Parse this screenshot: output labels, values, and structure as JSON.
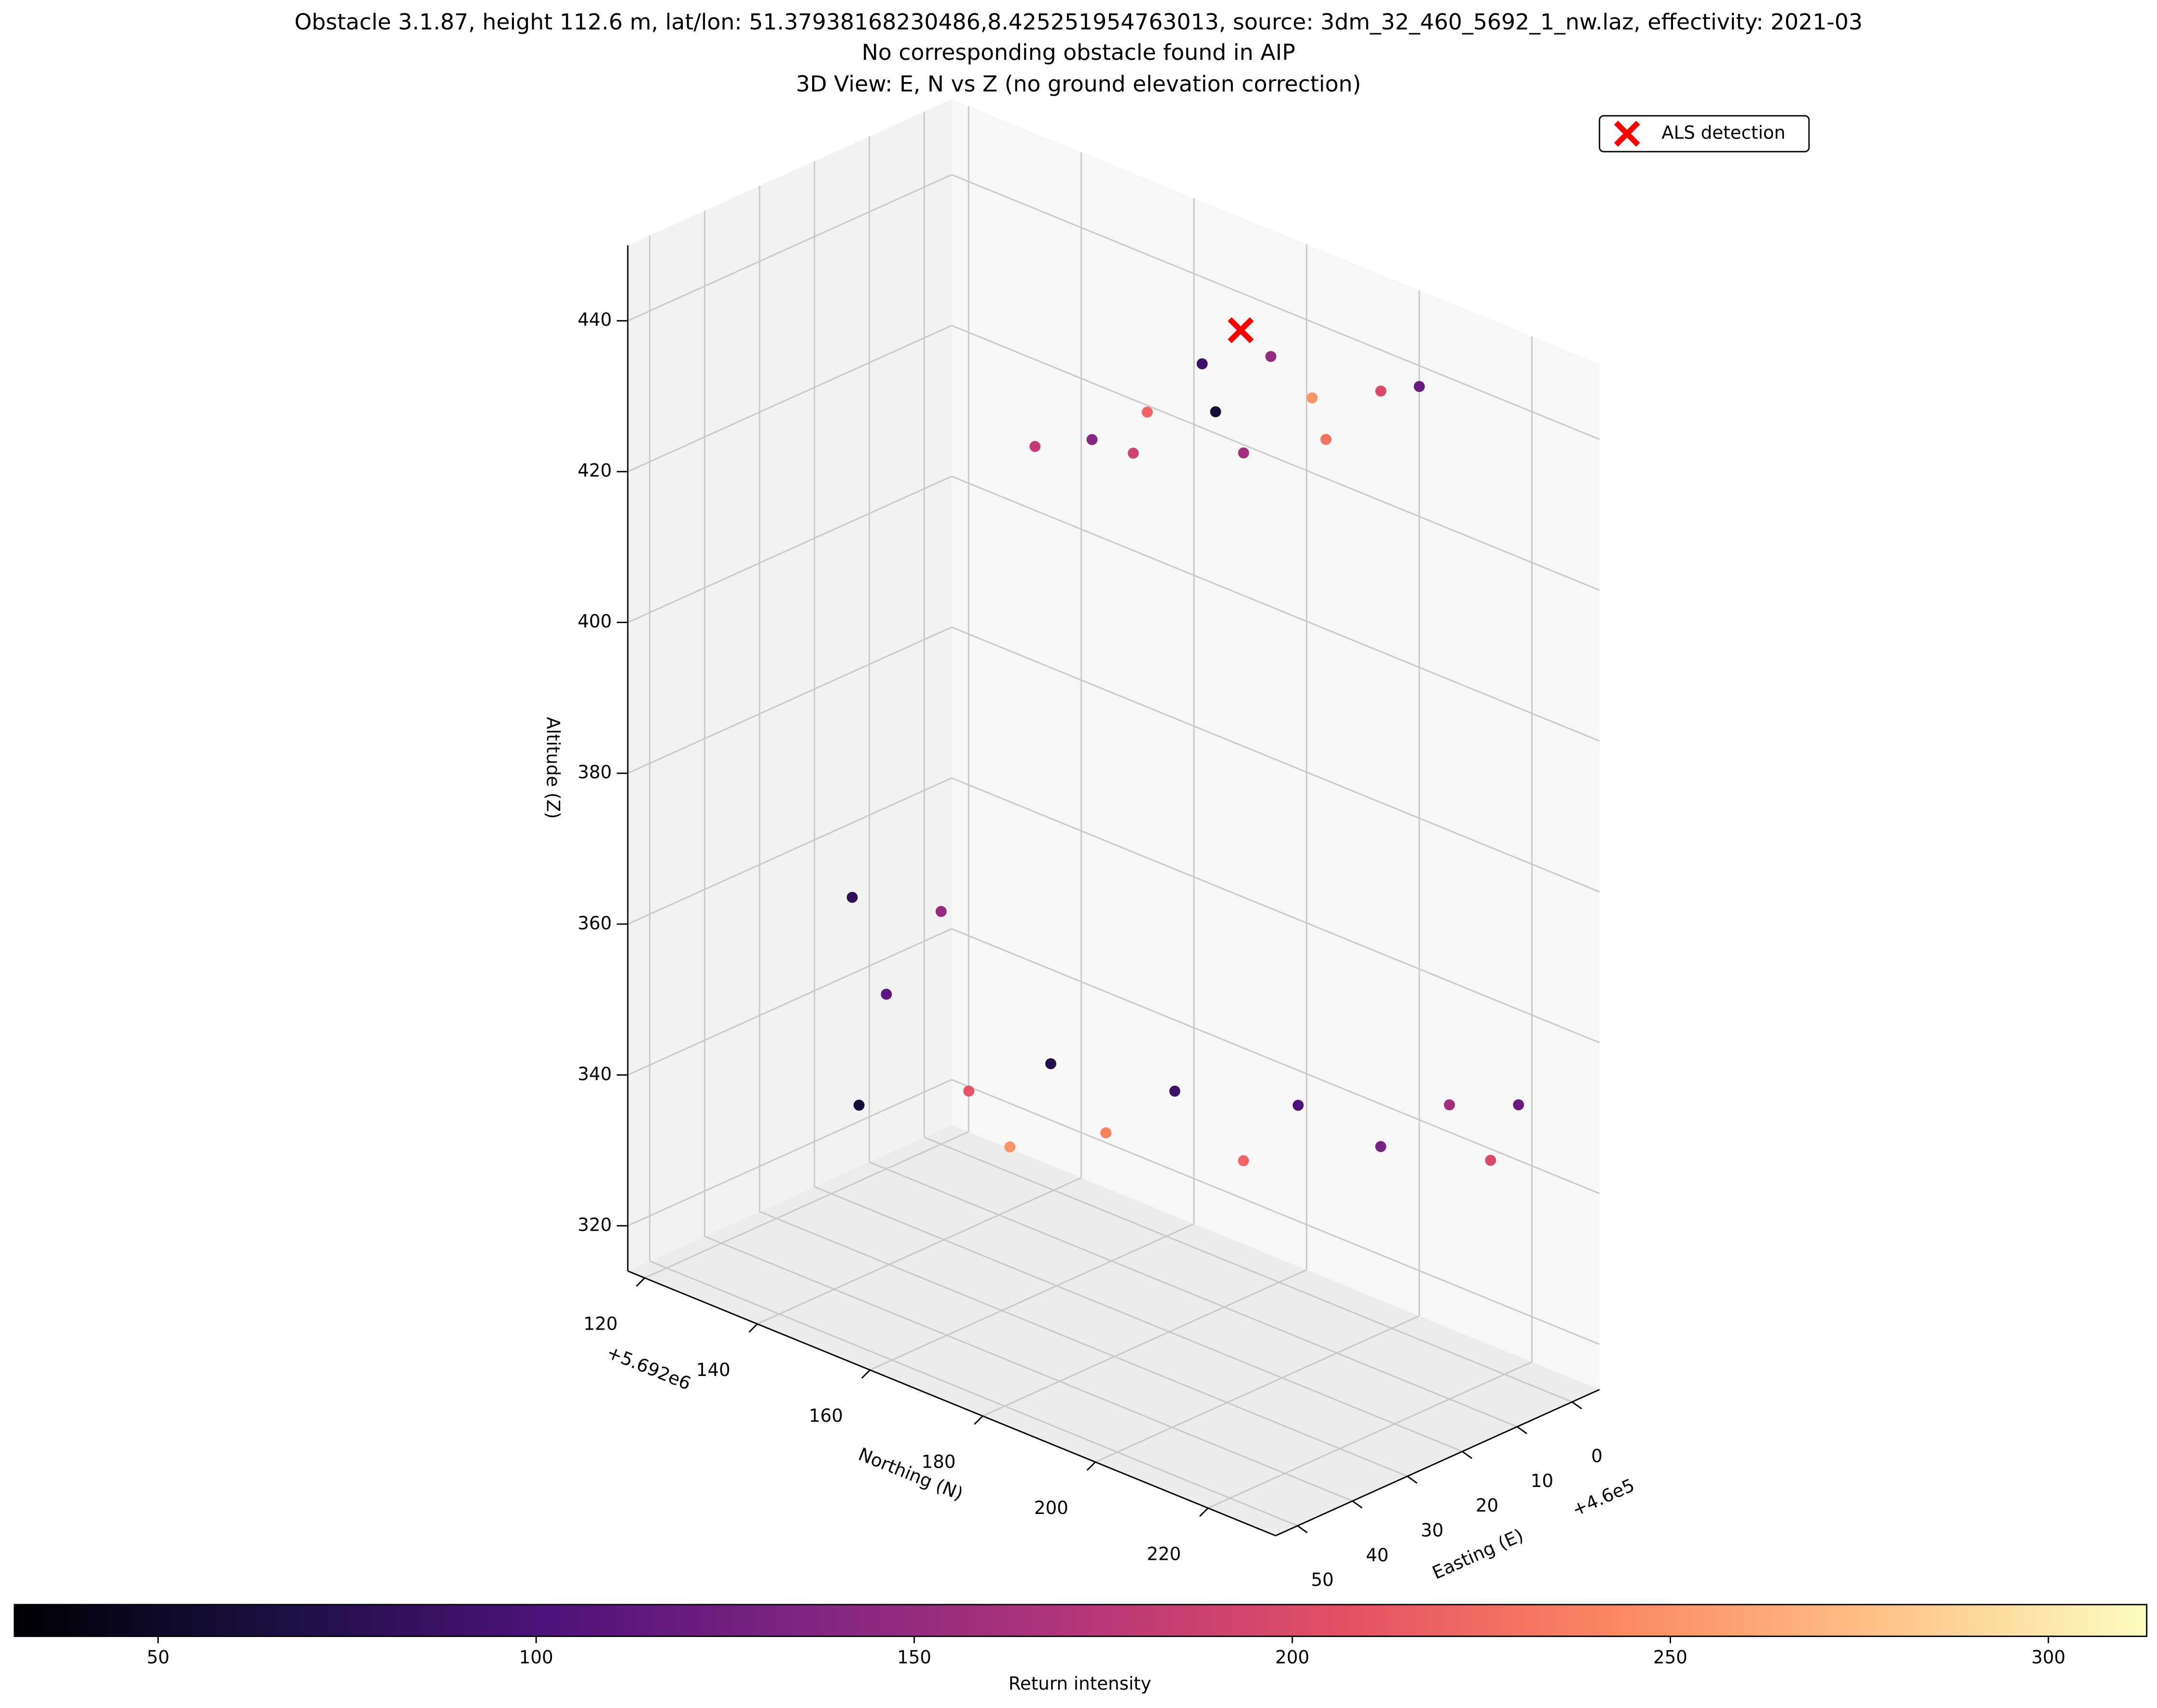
{
  "chart_data": {
    "type": "scatter3d",
    "title": "Obstacle 3.1.87, height 112.6 m, lat/lon: 51.37938168230486,8.425251954763013, source: 3dm_32_460_5692_1_nw.laz, effectivity: 2021-03",
    "subtitle": "No corresponding obstacle found in AIP",
    "view_title": "3D View: E, N vs Z (no ground elevation correction)",
    "xlabel": "Easting (E)",
    "ylabel": "Northing (N)",
    "zlabel": "Altitude (Z)",
    "x_offset_label": "+4.6e5",
    "y_offset_label": "+5.692e6",
    "xlim": [
      -5,
      54
    ],
    "ylim": [
      117,
      232
    ],
    "zlim": [
      314,
      450
    ],
    "xticks": [
      0,
      10,
      20,
      30,
      40,
      50
    ],
    "yticks": [
      120,
      140,
      160,
      180,
      200,
      220
    ],
    "zticks": [
      320,
      340,
      360,
      380,
      400,
      420,
      440
    ],
    "grid": true,
    "colormap": "magma",
    "x": [
      26.2,
      23.0,
      15.6,
      5.4,
      19.1,
      6.3,
      2.1,
      -0.6,
      12.3,
      12.8,
      23.9,
      1.1,
      32.1,
      30.5,
      32.4,
      19.4,
      27.9,
      18.2,
      13.7,
      6.9,
      2.9,
      -0.8,
      -2.4,
      -2.8,
      -4.0,
      -2.6,
      23.4
    ],
    "y": [
      162.2,
      169.2,
      171.8,
      171.6,
      192.3,
      192.0,
      200.1,
      204.3,
      200.3,
      181.2,
      177.4,
      179.6,
      135.5,
      140.0,
      137.0,
      138.9,
      152.1,
      157.2,
      162.6,
      168.2,
      176.5,
      182.6,
      195.7,
      207.5,
      218.6,
      215.0,
      155.0
    ],
    "z": [
      428,
      430,
      432,
      435,
      434,
      437,
      439,
      440,
      436,
      434,
      431,
      437,
      362,
      350,
      335,
      357,
      340,
      342,
      333,
      338,
      330,
      338,
      336,
      345,
      348,
      340,
      332
    ],
    "intensity": [
      180,
      140,
      220,
      90,
      160,
      250,
      200,
      120,
      230,
      60,
      190,
      150,
      80,
      110,
      60,
      150,
      210,
      70,
      240,
      90,
      220,
      100,
      130,
      160,
      120,
      200,
      250
    ],
    "detection": {
      "name": "ALS detection",
      "color": "#ff0000",
      "x": -0.9,
      "y": 172.3,
      "z": 437.6
    },
    "legend_position": "upper right",
    "colorbar": {
      "label": "Return intensity",
      "clim": [
        31,
        313
      ],
      "ticks": [
        50,
        100,
        150,
        200,
        250,
        300
      ]
    }
  }
}
